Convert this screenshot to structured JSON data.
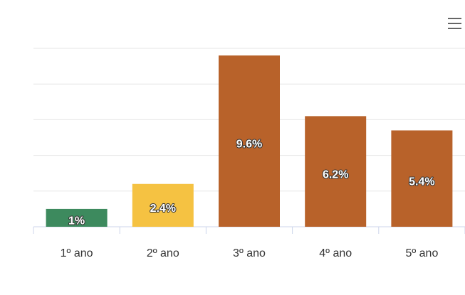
{
  "chart_data": {
    "type": "bar",
    "categories": [
      "1º ano",
      "2º ano",
      "3º ano",
      "4º ano",
      "5º ano"
    ],
    "values": [
      1,
      2.4,
      9.6,
      6.2,
      5.4
    ],
    "value_labels": [
      "1%",
      "2.4%",
      "9.6%",
      "6.2%",
      "5.4%"
    ],
    "colors": [
      "#3d8a5e",
      "#f5c242",
      "#b8622a",
      "#b8622a",
      "#b8622a"
    ],
    "ylim": [
      0,
      10
    ],
    "yticks": [
      0,
      2,
      4,
      6,
      8,
      10
    ],
    "grid": true
  }
}
